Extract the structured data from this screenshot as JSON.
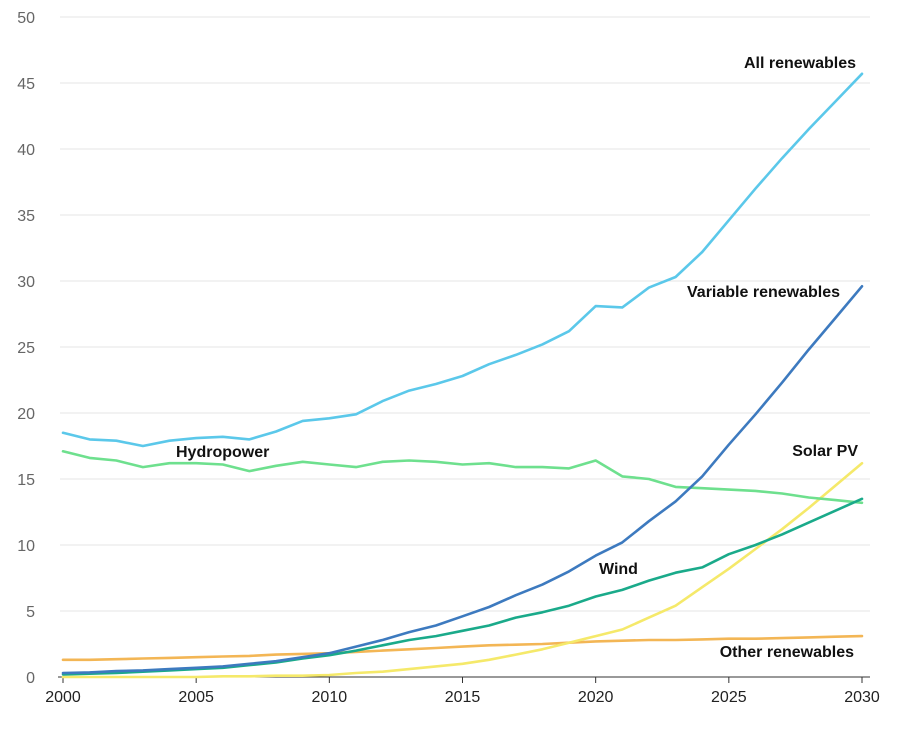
{
  "chart_data": {
    "type": "line",
    "title": "",
    "xlabel": "",
    "ylabel": "",
    "xlim": [
      2000,
      2030
    ],
    "ylim": [
      0,
      50
    ],
    "grid": true,
    "legend": "none (inline labels)",
    "x_ticks": [
      2000,
      2005,
      2010,
      2015,
      2020,
      2025,
      2030
    ],
    "y_ticks": [
      0,
      5,
      10,
      15,
      20,
      25,
      30,
      35,
      40,
      45,
      50
    ],
    "series": [
      {
        "key": "all",
        "name": "All renewables",
        "color": "#5bc8ea",
        "points": [
          [
            2000,
            18.5
          ],
          [
            2001,
            18.0
          ],
          [
            2002,
            17.9
          ],
          [
            2003,
            17.5
          ],
          [
            2004,
            17.9
          ],
          [
            2005,
            18.1
          ],
          [
            2006,
            18.2
          ],
          [
            2007,
            18.0
          ],
          [
            2008,
            18.6
          ],
          [
            2009,
            19.4
          ],
          [
            2010,
            19.6
          ],
          [
            2011,
            19.9
          ],
          [
            2012,
            20.9
          ],
          [
            2013,
            21.7
          ],
          [
            2014,
            22.2
          ],
          [
            2015,
            22.8
          ],
          [
            2016,
            23.7
          ],
          [
            2017,
            24.4
          ],
          [
            2018,
            25.2
          ],
          [
            2019,
            26.2
          ],
          [
            2020,
            28.1
          ],
          [
            2021,
            28.0
          ],
          [
            2022,
            29.5
          ],
          [
            2023,
            30.3
          ],
          [
            2024,
            32.2
          ],
          [
            2025,
            34.6
          ],
          [
            2026,
            37.0
          ],
          [
            2027,
            39.3
          ],
          [
            2028,
            41.5
          ],
          [
            2029,
            43.6
          ],
          [
            2030,
            45.7
          ]
        ]
      },
      {
        "key": "variable",
        "name": "Variable renewables",
        "color": "#3d7abf",
        "points": [
          [
            2000,
            0.3
          ],
          [
            2001,
            0.35
          ],
          [
            2002,
            0.45
          ],
          [
            2003,
            0.5
          ],
          [
            2004,
            0.6
          ],
          [
            2005,
            0.7
          ],
          [
            2006,
            0.8
          ],
          [
            2007,
            1.0
          ],
          [
            2008,
            1.2
          ],
          [
            2009,
            1.5
          ],
          [
            2010,
            1.8
          ],
          [
            2011,
            2.3
          ],
          [
            2012,
            2.8
          ],
          [
            2013,
            3.4
          ],
          [
            2014,
            3.9
          ],
          [
            2015,
            4.6
          ],
          [
            2016,
            5.3
          ],
          [
            2017,
            6.2
          ],
          [
            2018,
            7.0
          ],
          [
            2019,
            8.0
          ],
          [
            2020,
            9.2
          ],
          [
            2021,
            10.2
          ],
          [
            2022,
            11.8
          ],
          [
            2023,
            13.3
          ],
          [
            2024,
            15.2
          ],
          [
            2025,
            17.6
          ],
          [
            2026,
            19.9
          ],
          [
            2027,
            22.3
          ],
          [
            2028,
            24.8
          ],
          [
            2029,
            27.2
          ],
          [
            2030,
            29.6
          ]
        ]
      },
      {
        "key": "hydro",
        "name": "Hydropower",
        "color": "#6ee08e",
        "points": [
          [
            2000,
            17.1
          ],
          [
            2001,
            16.6
          ],
          [
            2002,
            16.4
          ],
          [
            2003,
            15.9
          ],
          [
            2004,
            16.2
          ],
          [
            2005,
            16.2
          ],
          [
            2006,
            16.1
          ],
          [
            2007,
            15.6
          ],
          [
            2008,
            16.0
          ],
          [
            2009,
            16.3
          ],
          [
            2010,
            16.1
          ],
          [
            2011,
            15.9
          ],
          [
            2012,
            16.3
          ],
          [
            2013,
            16.4
          ],
          [
            2014,
            16.3
          ],
          [
            2015,
            16.1
          ],
          [
            2016,
            16.2
          ],
          [
            2017,
            15.9
          ],
          [
            2018,
            15.9
          ],
          [
            2019,
            15.8
          ],
          [
            2020,
            16.4
          ],
          [
            2021,
            15.2
          ],
          [
            2022,
            15.0
          ],
          [
            2023,
            14.4
          ],
          [
            2024,
            14.3
          ],
          [
            2025,
            14.2
          ],
          [
            2026,
            14.1
          ],
          [
            2027,
            13.9
          ],
          [
            2028,
            13.6
          ],
          [
            2029,
            13.4
          ],
          [
            2030,
            13.2
          ]
        ]
      },
      {
        "key": "solar",
        "name": "Solar PV",
        "color": "#f5e96a",
        "points": [
          [
            2000,
            0.0
          ],
          [
            2001,
            0.0
          ],
          [
            2002,
            0.0
          ],
          [
            2003,
            0.0
          ],
          [
            2004,
            0.0
          ],
          [
            2005,
            0.0
          ],
          [
            2006,
            0.05
          ],
          [
            2007,
            0.05
          ],
          [
            2008,
            0.1
          ],
          [
            2009,
            0.1
          ],
          [
            2010,
            0.15
          ],
          [
            2011,
            0.3
          ],
          [
            2012,
            0.4
          ],
          [
            2013,
            0.6
          ],
          [
            2014,
            0.8
          ],
          [
            2015,
            1.0
          ],
          [
            2016,
            1.3
          ],
          [
            2017,
            1.7
          ],
          [
            2018,
            2.1
          ],
          [
            2019,
            2.6
          ],
          [
            2020,
            3.1
          ],
          [
            2021,
            3.6
          ],
          [
            2022,
            4.5
          ],
          [
            2023,
            5.4
          ],
          [
            2024,
            6.8
          ],
          [
            2025,
            8.2
          ],
          [
            2026,
            9.7
          ],
          [
            2027,
            11.2
          ],
          [
            2028,
            12.8
          ],
          [
            2029,
            14.5
          ],
          [
            2030,
            16.2
          ]
        ]
      },
      {
        "key": "wind",
        "name": "Wind",
        "color": "#1aaa8a",
        "points": [
          [
            2000,
            0.2
          ],
          [
            2001,
            0.25
          ],
          [
            2002,
            0.3
          ],
          [
            2003,
            0.4
          ],
          [
            2004,
            0.5
          ],
          [
            2005,
            0.6
          ],
          [
            2006,
            0.7
          ],
          [
            2007,
            0.9
          ],
          [
            2008,
            1.1
          ],
          [
            2009,
            1.4
          ],
          [
            2010,
            1.65
          ],
          [
            2011,
            2.0
          ],
          [
            2012,
            2.4
          ],
          [
            2013,
            2.8
          ],
          [
            2014,
            3.1
          ],
          [
            2015,
            3.5
          ],
          [
            2016,
            3.9
          ],
          [
            2017,
            4.5
          ],
          [
            2018,
            4.9
          ],
          [
            2019,
            5.4
          ],
          [
            2020,
            6.1
          ],
          [
            2021,
            6.6
          ],
          [
            2022,
            7.3
          ],
          [
            2023,
            7.9
          ],
          [
            2024,
            8.3
          ],
          [
            2025,
            9.3
          ],
          [
            2026,
            10.0
          ],
          [
            2027,
            10.8
          ],
          [
            2028,
            11.7
          ],
          [
            2029,
            12.6
          ],
          [
            2030,
            13.5
          ]
        ]
      },
      {
        "key": "other",
        "name": "Other renewables",
        "color": "#f3b655",
        "points": [
          [
            2000,
            1.3
          ],
          [
            2001,
            1.3
          ],
          [
            2002,
            1.35
          ],
          [
            2003,
            1.4
          ],
          [
            2004,
            1.45
          ],
          [
            2005,
            1.5
          ],
          [
            2006,
            1.55
          ],
          [
            2007,
            1.6
          ],
          [
            2008,
            1.7
          ],
          [
            2009,
            1.75
          ],
          [
            2010,
            1.8
          ],
          [
            2011,
            1.9
          ],
          [
            2012,
            2.0
          ],
          [
            2013,
            2.1
          ],
          [
            2014,
            2.2
          ],
          [
            2015,
            2.3
          ],
          [
            2016,
            2.4
          ],
          [
            2017,
            2.45
          ],
          [
            2018,
            2.5
          ],
          [
            2019,
            2.6
          ],
          [
            2020,
            2.7
          ],
          [
            2021,
            2.75
          ],
          [
            2022,
            2.8
          ],
          [
            2023,
            2.8
          ],
          [
            2024,
            2.85
          ],
          [
            2025,
            2.9
          ],
          [
            2026,
            2.9
          ],
          [
            2027,
            2.95
          ],
          [
            2028,
            3.0
          ],
          [
            2029,
            3.05
          ],
          [
            2030,
            3.1
          ]
        ]
      }
    ]
  }
}
